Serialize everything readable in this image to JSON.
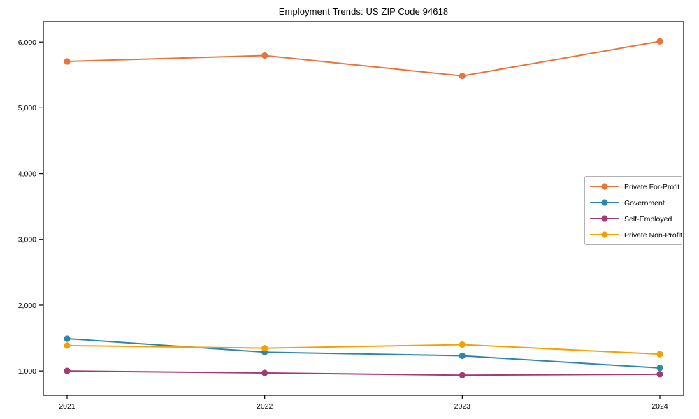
{
  "page": {
    "title": "Employment Trends: US ZIP Code 94618"
  },
  "chart_data": {
    "type": "line",
    "title": "Employment Trends: US ZIP Code 94618",
    "x": [
      "2021",
      "2022",
      "2023",
      "2024"
    ],
    "xlabel": "",
    "ylabel": "",
    "ylim": [
      630,
      6310
    ],
    "yticks": [
      1000,
      2000,
      3000,
      4000,
      5000,
      6000
    ],
    "ytick_labels": [
      "1,000",
      "2,000",
      "3,000",
      "4,000",
      "5,000",
      "6,000"
    ],
    "grid": false,
    "legend_position": "center-right",
    "marker": "circle",
    "axis_color": "#000000",
    "background_color": "#ffffff",
    "series": [
      {
        "name": "Private For-Profit",
        "color": "#E8743B",
        "values": [
          5705,
          5795,
          5485,
          6010
        ]
      },
      {
        "name": "Government",
        "color": "#2E86AB",
        "values": [
          1490,
          1285,
          1230,
          1045
        ]
      },
      {
        "name": "Self-Employed",
        "color": "#A23B72",
        "values": [
          1000,
          970,
          935,
          950
        ]
      },
      {
        "name": "Private Non-Profit",
        "color": "#F2A104",
        "values": [
          1385,
          1345,
          1400,
          1255
        ]
      }
    ]
  }
}
